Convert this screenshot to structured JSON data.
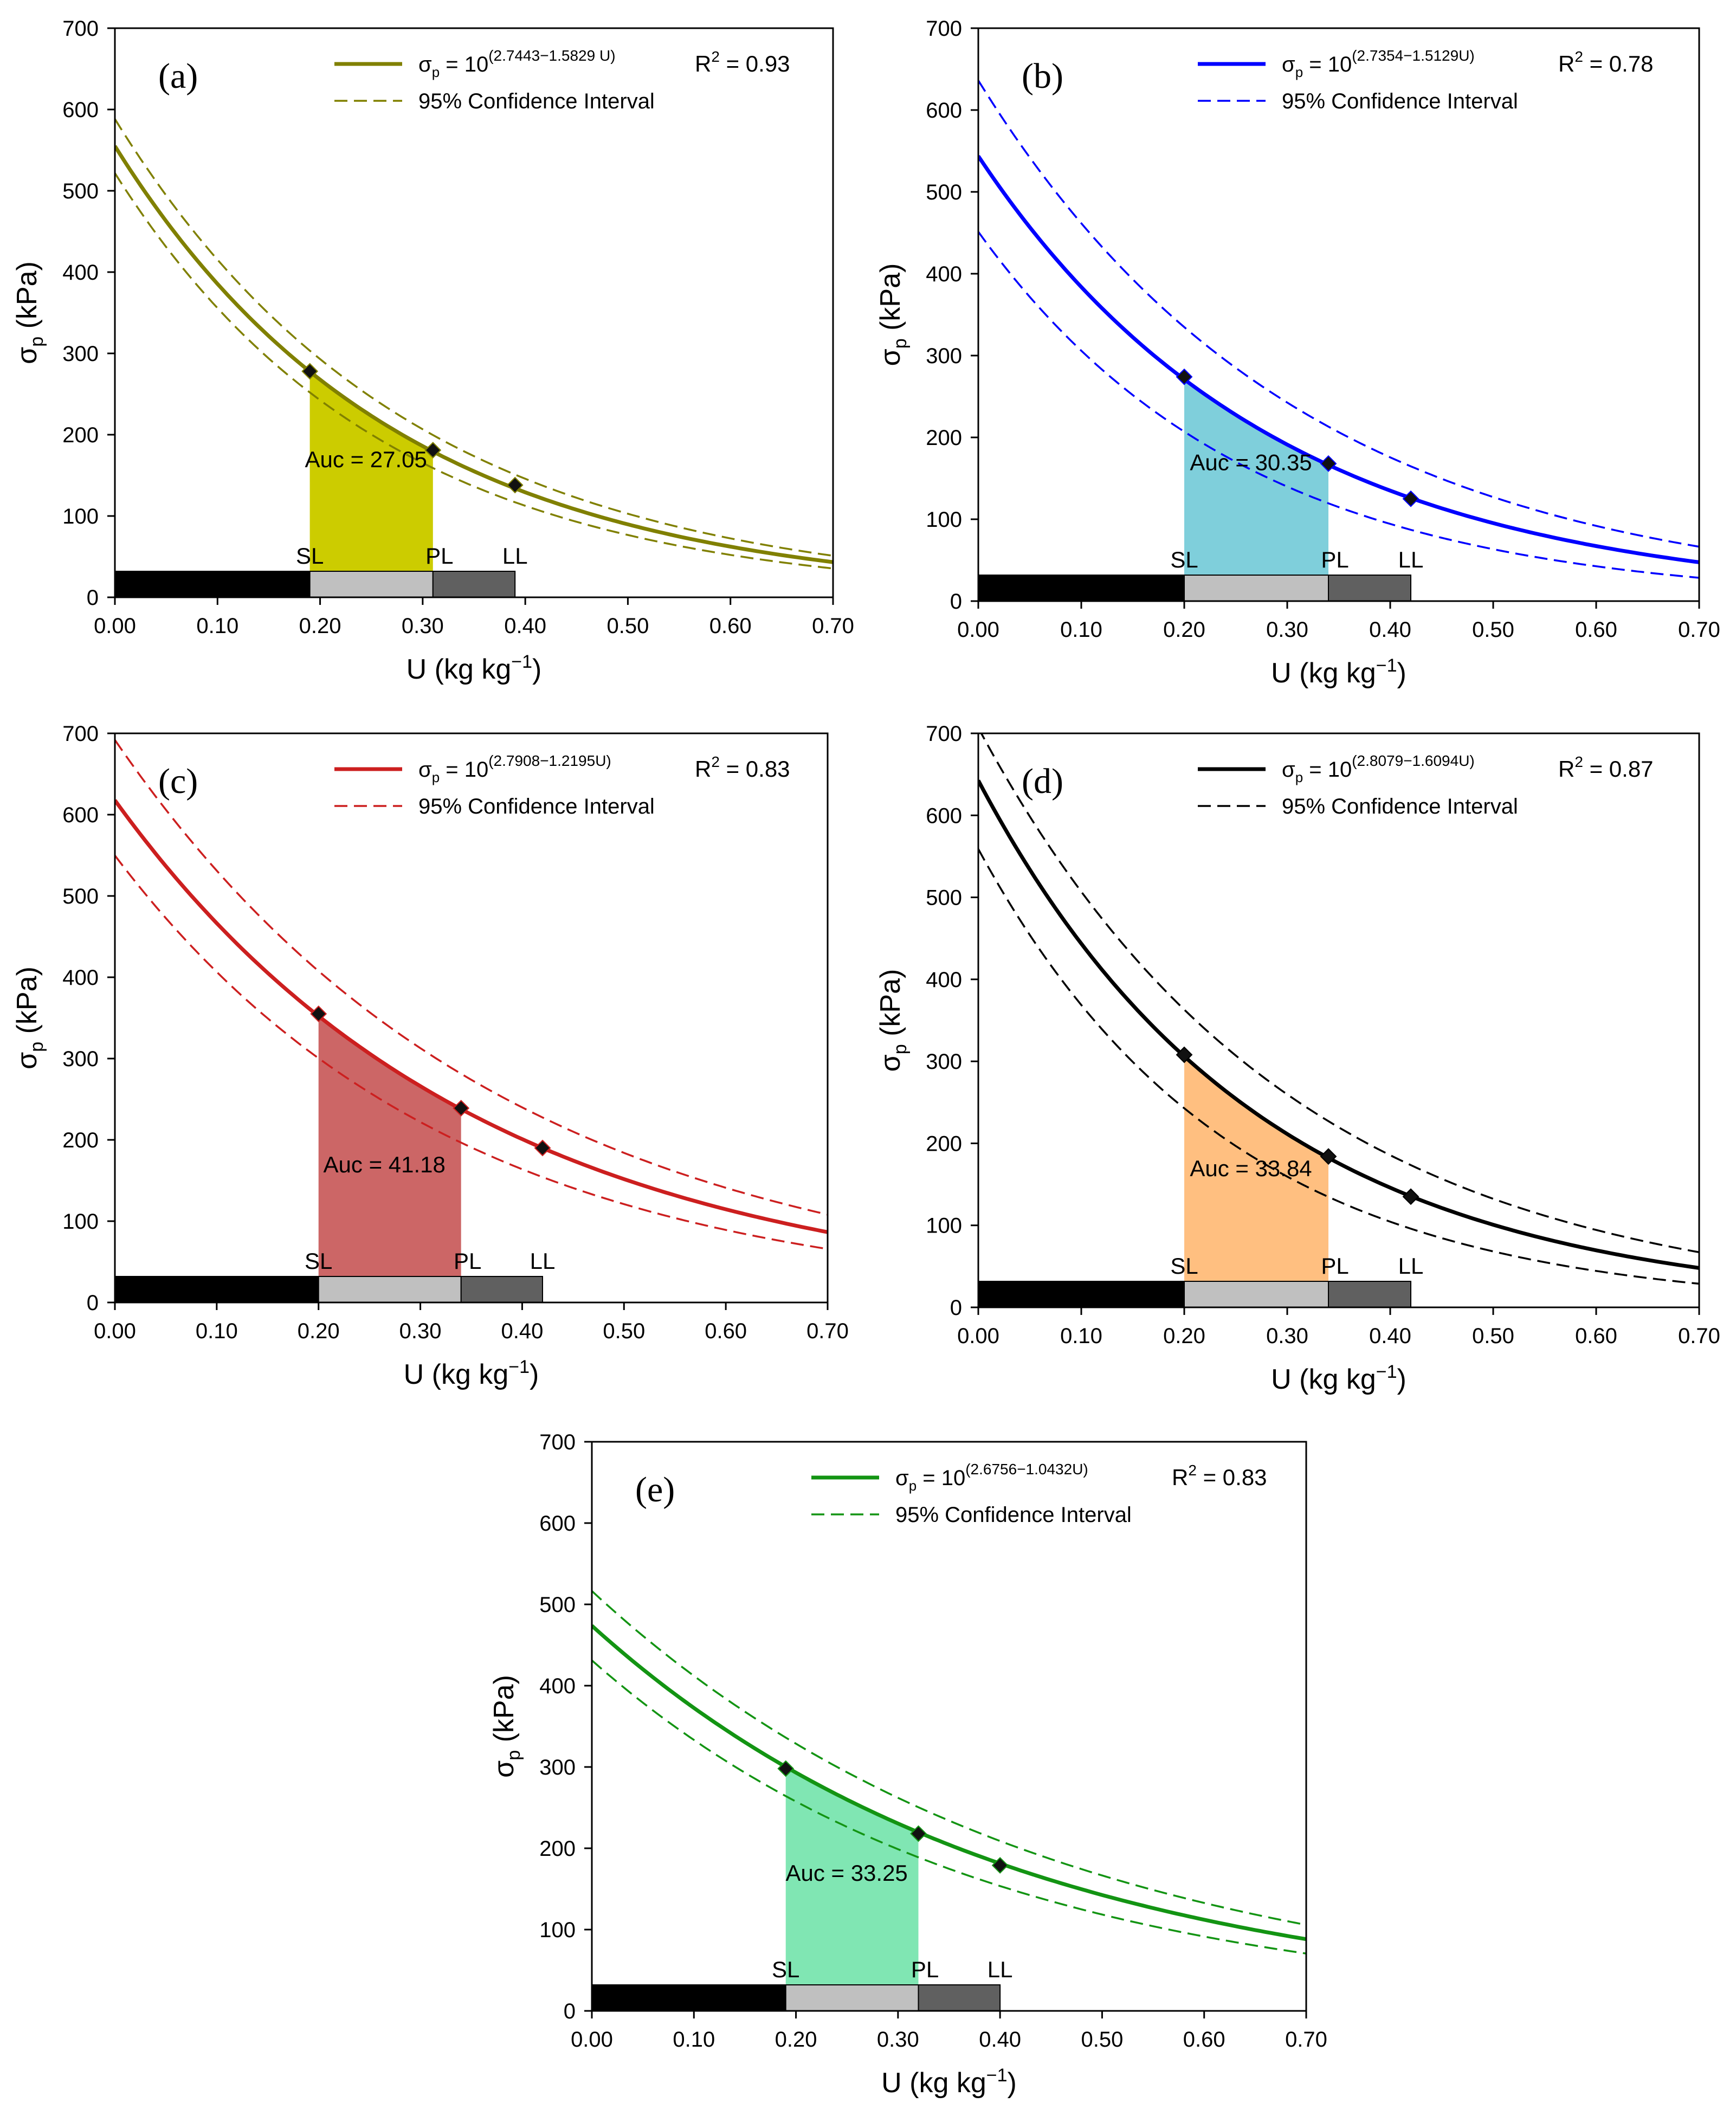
{
  "chart_data": [
    {
      "id": "a",
      "type": "line",
      "panel_label": "(a)",
      "title": "",
      "xlabel": "U (kg kg",
      "xlabel_sup": "−1",
      "xlabel_close": ")",
      "ylabel_main": "σ",
      "ylabel_sub": "p",
      "ylabel_unit": " (kPa)",
      "xlim": [
        0,
        0.7
      ],
      "ylim": [
        0,
        700
      ],
      "x_ticks": [
        "0.00",
        "0.10",
        "0.20",
        "0.30",
        "0.40",
        "0.50",
        "0.60",
        "0.70"
      ],
      "y_ticks": [
        "0",
        "100",
        "200",
        "300",
        "400",
        "500",
        "600",
        "700"
      ],
      "equation": {
        "prefix": "σ",
        "sub": "p",
        "mid": " = 10",
        "exponent": "(2.7443−1.5829 U)"
      },
      "r2": {
        "label": "R",
        "sup": "2",
        "value": " = 0.93"
      },
      "ci_label": "95% Confidence Interval",
      "model": {
        "a": 2.7443,
        "b": 1.5829
      },
      "ci_factor": {
        "upper_at_0": 1.06,
        "upper_at_end": 1.18,
        "lower_at_0": 0.94,
        "lower_at_end": 0.82
      },
      "color": "#808000",
      "fill_color": "#cccc00",
      "points": [
        {
          "x": 0.19,
          "y": 278
        },
        {
          "x": 0.31,
          "y": 181
        },
        {
          "x": 0.39,
          "y": 138
        }
      ],
      "auc": {
        "label": "Auc = 27.05",
        "x_start": 0.19,
        "x_end": 0.31
      },
      "limits": [
        {
          "label": "SL",
          "x": 0.19
        },
        {
          "label": "PL",
          "x": 0.31
        },
        {
          "label": "LL",
          "x": 0.39
        }
      ],
      "bar_colors": [
        "#000000",
        "#c0c0c0",
        "#606060"
      ]
    },
    {
      "id": "b",
      "type": "line",
      "panel_label": "(b)",
      "title": "",
      "xlabel": "U (kg kg",
      "xlabel_sup": "−1",
      "xlabel_close": ")",
      "ylabel_main": "σ",
      "ylabel_sub": "p",
      "ylabel_unit": " (kPa)",
      "xlim": [
        0,
        0.7
      ],
      "ylim": [
        0,
        700
      ],
      "x_ticks": [
        "0.00",
        "0.10",
        "0.20",
        "0.30",
        "0.40",
        "0.50",
        "0.60",
        "0.70"
      ],
      "y_ticks": [
        "0",
        "100",
        "200",
        "300",
        "400",
        "500",
        "600",
        "700"
      ],
      "equation": {
        "prefix": "σ",
        "sub": "p",
        "mid": " = 10",
        "exponent": "(2.7354−1.5129U)"
      },
      "r2": {
        "label": "R",
        "sup": "2",
        "value": " = 0.78"
      },
      "ci_label": "95% Confidence Interval",
      "model": {
        "a": 2.7354,
        "b": 1.5129
      },
      "ci_factor": {
        "upper_at_0": 1.17,
        "upper_at_end": 1.4,
        "lower_at_0": 0.83,
        "lower_at_end": 0.6
      },
      "color": "#0000ff",
      "fill_color": "#7fcfdb",
      "points": [
        {
          "x": 0.2,
          "y": 274
        },
        {
          "x": 0.34,
          "y": 168
        },
        {
          "x": 0.42,
          "y": 125
        }
      ],
      "auc": {
        "label": "Auc = 30.35",
        "x_start": 0.2,
        "x_end": 0.34
      },
      "limits": [
        {
          "label": "SL",
          "x": 0.2
        },
        {
          "label": "PL",
          "x": 0.34
        },
        {
          "label": "LL",
          "x": 0.42
        }
      ],
      "bar_colors": [
        "#000000",
        "#c0c0c0",
        "#606060"
      ]
    },
    {
      "id": "c",
      "type": "line",
      "panel_label": "(c)",
      "title": "",
      "xlabel": "U (kg kg",
      "xlabel_sup": "−1",
      "xlabel_close": ")",
      "ylabel_main": "σ",
      "ylabel_sub": "p",
      "ylabel_unit": " (kPa)",
      "xlim": [
        0,
        0.7
      ],
      "ylim": [
        0,
        700
      ],
      "x_ticks": [
        "0.00",
        "0.10",
        "0.20",
        "0.30",
        "0.40",
        "0.50",
        "0.60",
        "0.70"
      ],
      "y_ticks": [
        "0",
        "100",
        "200",
        "300",
        "400",
        "500",
        "600",
        "700"
      ],
      "equation": {
        "prefix": "σ",
        "sub": "p",
        "mid": " = 10",
        "exponent": "(2.7908−1.2195U)"
      },
      "r2": {
        "label": "R",
        "sup": "2",
        "value": " = 0.83"
      },
      "ci_label": "95% Confidence Interval",
      "model": {
        "a": 2.7908,
        "b": 1.2195
      },
      "ci_factor": {
        "upper_at_0": 1.12,
        "upper_at_end": 1.25,
        "lower_at_0": 0.89,
        "lower_at_end": 0.76
      },
      "color": "#cc1f1f",
      "fill_color": "#cc6666",
      "points": [
        {
          "x": 0.2,
          "y": 355
        },
        {
          "x": 0.34,
          "y": 239
        },
        {
          "x": 0.42,
          "y": 190
        }
      ],
      "auc": {
        "label": "Auc = 41.18",
        "x_start": 0.2,
        "x_end": 0.34
      },
      "limits": [
        {
          "label": "SL",
          "x": 0.2
        },
        {
          "label": "PL",
          "x": 0.34
        },
        {
          "label": "LL",
          "x": 0.42
        }
      ],
      "bar_colors": [
        "#000000",
        "#c0c0c0",
        "#606060"
      ]
    },
    {
      "id": "d",
      "type": "line",
      "panel_label": "(d)",
      "title": "",
      "xlabel": "U (kg kg",
      "xlabel_sup": "−1",
      "xlabel_close": ")",
      "ylabel_main": "σ",
      "ylabel_sub": "p",
      "ylabel_unit": " (kPa)",
      "xlim": [
        0,
        0.7
      ],
      "ylim": [
        0,
        700
      ],
      "x_ticks": [
        "0.00",
        "0.10",
        "0.20",
        "0.30",
        "0.40",
        "0.50",
        "0.60",
        "0.70"
      ],
      "y_ticks": [
        "0",
        "100",
        "200",
        "300",
        "400",
        "500",
        "600",
        "700"
      ],
      "equation": {
        "prefix": "σ",
        "sub": "p",
        "mid": " = 10",
        "exponent": "(2.8079−1.6094U)"
      },
      "r2": {
        "label": "R",
        "sup": "2",
        "value": " = 0.87"
      },
      "ci_label": "95% Confidence Interval",
      "model": {
        "a": 2.8079,
        "b": 1.6094
      },
      "ci_factor": {
        "upper_at_0": 1.1,
        "upper_at_end": 1.4,
        "lower_at_0": 0.87,
        "lower_at_end": 0.6
      },
      "color": "#000000",
      "fill_color": "#ffbf80",
      "points": [
        {
          "x": 0.2,
          "y": 308
        },
        {
          "x": 0.34,
          "y": 184
        },
        {
          "x": 0.42,
          "y": 135
        }
      ],
      "auc": {
        "label": "Auc = 33.84",
        "x_start": 0.2,
        "x_end": 0.34
      },
      "limits": [
        {
          "label": "SL",
          "x": 0.2
        },
        {
          "label": "PL",
          "x": 0.34
        },
        {
          "label": "LL",
          "x": 0.42
        }
      ],
      "bar_colors": [
        "#000000",
        "#c0c0c0",
        "#606060"
      ]
    },
    {
      "id": "e",
      "type": "line",
      "panel_label": "(e)",
      "title": "",
      "xlabel": "U (kg kg",
      "xlabel_sup": "−1",
      "xlabel_close": ")",
      "ylabel_main": "σ",
      "ylabel_sub": "p",
      "ylabel_unit": " (kPa)",
      "xlim": [
        0,
        0.7
      ],
      "ylim": [
        0,
        700
      ],
      "x_ticks": [
        "0.00",
        "0.10",
        "0.20",
        "0.30",
        "0.40",
        "0.50",
        "0.60",
        "0.70"
      ],
      "y_ticks": [
        "0",
        "100",
        "200",
        "300",
        "400",
        "500",
        "600",
        "700"
      ],
      "equation": {
        "prefix": "σ",
        "sub": "p",
        "mid": " = 10",
        "exponent": "(2.6756−1.0432U)"
      },
      "r2": {
        "label": "R",
        "sup": "2",
        "value": " = 0.83"
      },
      "ci_label": "95% Confidence Interval",
      "model": {
        "a": 2.6756,
        "b": 1.0432
      },
      "ci_factor": {
        "upper_at_0": 1.09,
        "upper_at_end": 1.2,
        "lower_at_0": 0.91,
        "lower_at_end": 0.8
      },
      "color": "#139413",
      "fill_color": "#80e6b3",
      "points": [
        {
          "x": 0.19,
          "y": 298
        },
        {
          "x": 0.32,
          "y": 218
        },
        {
          "x": 0.4,
          "y": 179
        }
      ],
      "auc": {
        "label": "Auc = 33.25",
        "x_start": 0.19,
        "x_end": 0.32
      },
      "limits": [
        {
          "label": "SL",
          "x": 0.19
        },
        {
          "label": "PL",
          "x": 0.32
        },
        {
          "label": "LL",
          "x": 0.4
        }
      ],
      "bar_colors": [
        "#000000",
        "#c0c0c0",
        "#606060"
      ]
    }
  ]
}
